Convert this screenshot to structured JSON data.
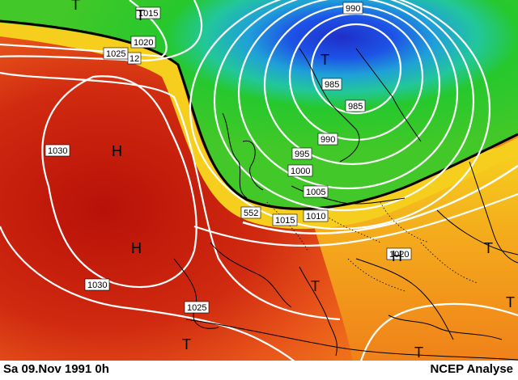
{
  "footer": {
    "date_label": "Sa 09.Nov 1991  0h",
    "source_label": "NCEP Analyse"
  },
  "map": {
    "isobar_labels": [
      {
        "id": "1015-top",
        "text": "1015"
      },
      {
        "id": "1020",
        "text": "1020"
      },
      {
        "id": "1025-nw",
        "text": "1025"
      },
      {
        "id": "1030-west",
        "text": "1030"
      },
      {
        "id": "1030-sw",
        "text": "1030"
      },
      {
        "id": "1025-spain",
        "text": "1025"
      },
      {
        "id": "990-top",
        "text": "990"
      },
      {
        "id": "985-a",
        "text": "985"
      },
      {
        "id": "985-b",
        "text": "985"
      },
      {
        "id": "990",
        "text": "990"
      },
      {
        "id": "995",
        "text": "995"
      },
      {
        "id": "1000",
        "text": "1000"
      },
      {
        "id": "1005",
        "text": "1005"
      },
      {
        "id": "1010",
        "text": "1010"
      },
      {
        "id": "1015",
        "text": "1015"
      },
      {
        "id": "1020-east",
        "text": "1020"
      }
    ],
    "contour_labels": [
      {
        "id": "528",
        "text": "12"
      },
      {
        "id": "552",
        "text": "552"
      }
    ],
    "pressure_centers": [
      {
        "id": "H-atlantic-north",
        "text": "H"
      },
      {
        "id": "H-atlantic-south",
        "text": "H"
      },
      {
        "id": "H-balkans",
        "text": "H"
      },
      {
        "id": "T-north-top",
        "text": "T"
      },
      {
        "id": "T-greenland",
        "text": "T"
      },
      {
        "id": "T-scandinavia",
        "text": "T"
      },
      {
        "id": "T-italy",
        "text": "T"
      },
      {
        "id": "T-africa",
        "text": "T"
      },
      {
        "id": "T-east",
        "text": "T"
      },
      {
        "id": "T-black-sea",
        "text": "T"
      },
      {
        "id": "T-med-east",
        "text": "T"
      }
    ],
    "colors": {
      "high_red": "#cf1f12",
      "orange": "#f07418",
      "yellow": "#f5d21c",
      "green": "#26c82d",
      "cyan": "#1fb0c9",
      "blue": "#1d52e6",
      "deep_blue": "#1f2fc8",
      "isobar": "#ffffff",
      "coastline": "#000000"
    }
  }
}
